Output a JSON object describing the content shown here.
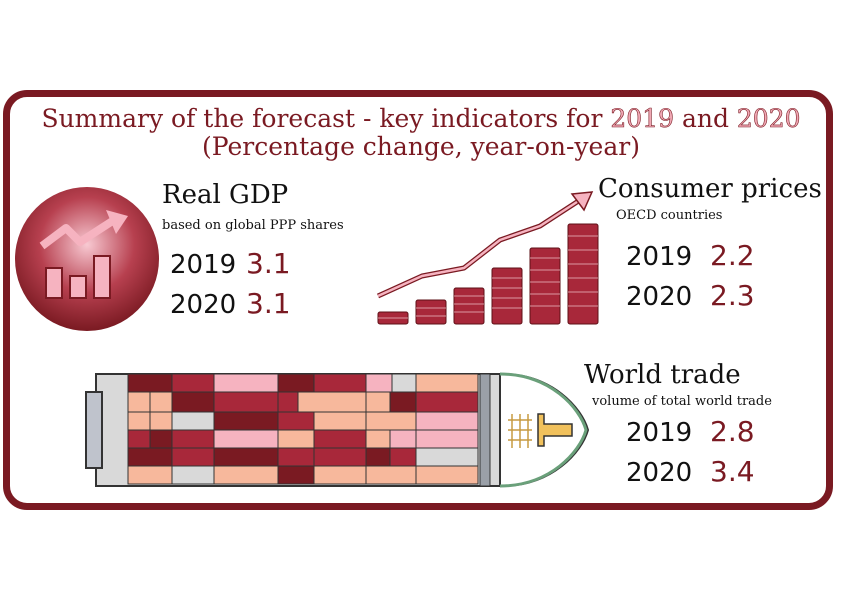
{
  "title": {
    "line1_prefix": "Summary of the forecast - key indicators for ",
    "year_a": "2019",
    "line1_mid": " and ",
    "year_b": "2020",
    "line2": "(Percentage change, year-on-year)"
  },
  "gdp": {
    "heading": "Real GDP",
    "subtitle": "based on global PPP shares",
    "rows": [
      {
        "year": "2019",
        "value": "3.1"
      },
      {
        "year": "2020",
        "value": "3.1"
      }
    ]
  },
  "prices": {
    "heading": "Consumer prices",
    "subtitle": "OECD countries",
    "rows": [
      {
        "year": "2019",
        "value": "2.2"
      },
      {
        "year": "2020",
        "value": "2.3"
      }
    ]
  },
  "trade": {
    "heading": "World trade",
    "subtitle": "volume of total world trade",
    "rows": [
      {
        "year": "2019",
        "value": "2.8"
      },
      {
        "year": "2020",
        "value": "3.4"
      }
    ]
  },
  "colors": {
    "accent": "#7a1a22",
    "pink": "#f6b3c0",
    "salmon": "#f7b89c",
    "crimson": "#a8283a",
    "maroon": "#7a1a22"
  },
  "icons": [
    "bar-chart-up-icon",
    "coin-stacks-icon",
    "container-ship-icon"
  ]
}
